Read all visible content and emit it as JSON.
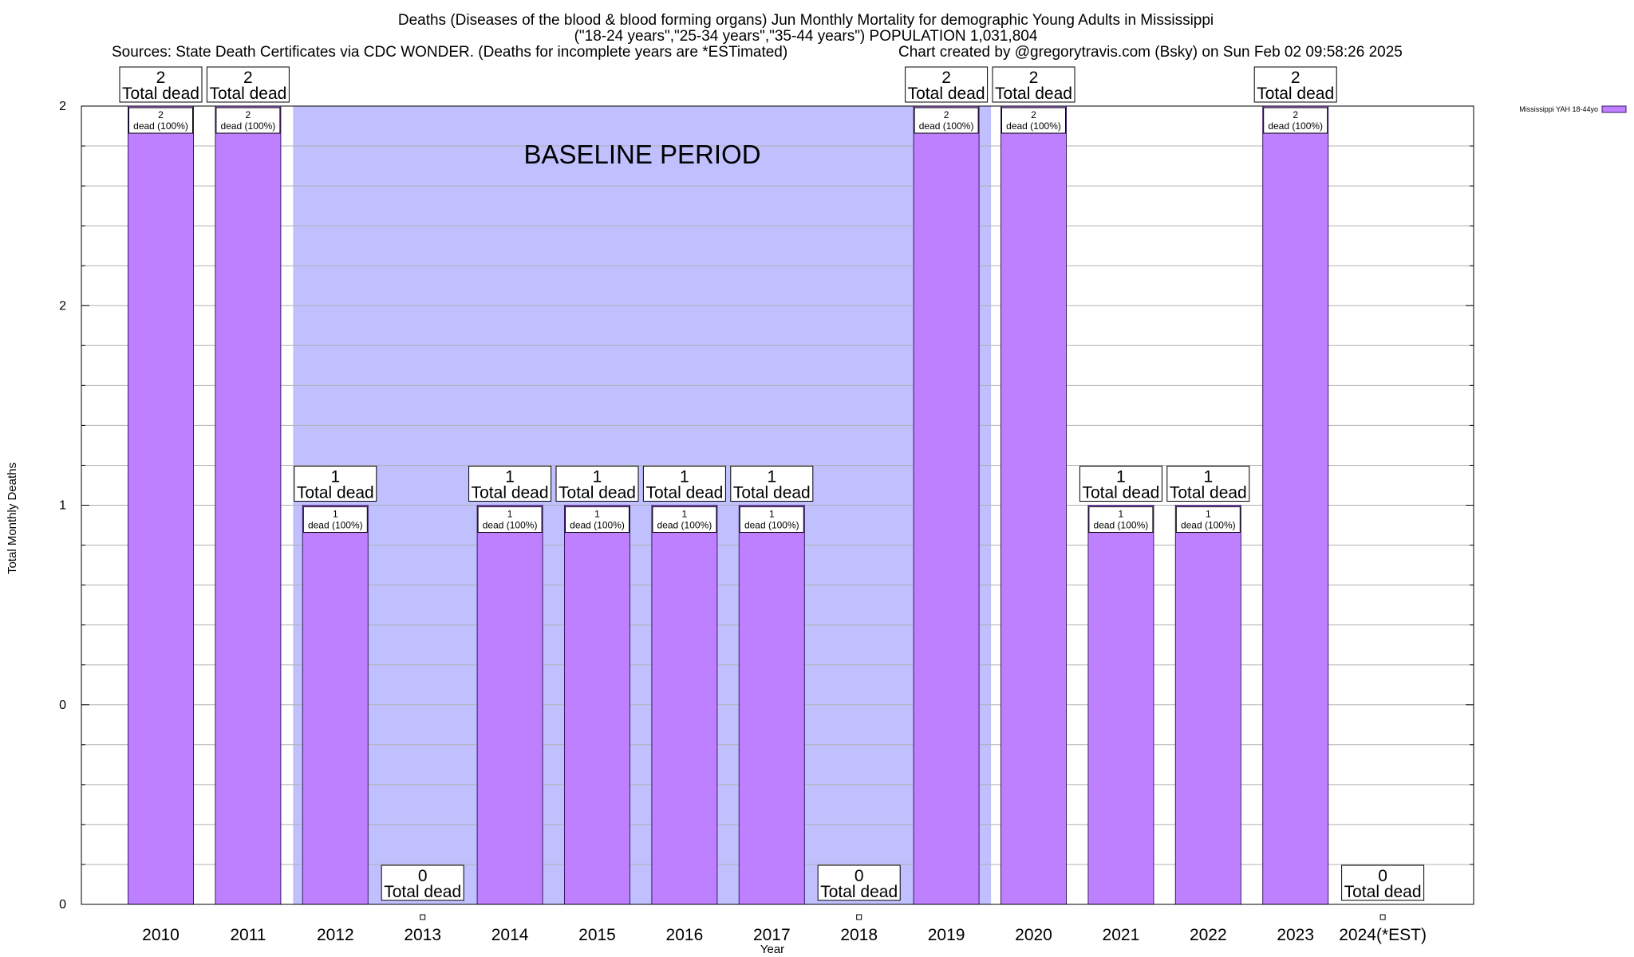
{
  "chart_data": {
    "type": "bar",
    "title_lines": [
      "Deaths (Diseases of the blood & blood forming organs) Jun Monthly Mortality for demographic Young Adults in Mississippi",
      "(\"18-24 years\",\"25-34 years\",\"35-44 years\") POPULATION 1,031,804"
    ],
    "sources": "Sources: State Death Certificates via CDC WONDER. (Deaths for incomplete years are *ESTimated)",
    "credit": "Chart created by @gregorytravis.com (Bsky) on Sun Feb 02 09:58:26 2025",
    "xlabel": "Year",
    "ylabel": "Total Monthly Deaths",
    "ylim": [
      0,
      2
    ],
    "y_tick_labels": [
      "0",
      "0",
      "1",
      "2",
      "2"
    ],
    "y_tick_values": [
      0,
      0.5,
      1,
      1.5,
      2
    ],
    "categories": [
      "2010",
      "2011",
      "2012",
      "2013",
      "2014",
      "2015",
      "2016",
      "2017",
      "2018",
      "2019",
      "2020",
      "2021",
      "2022",
      "2023",
      "2024(*EST)"
    ],
    "series": [
      {
        "name": "Mississippi YAH 18-44yo",
        "color": "#bf80ff",
        "values": [
          2,
          2,
          1,
          0,
          1,
          1,
          1,
          1,
          0,
          2,
          2,
          1,
          1,
          2,
          0
        ]
      }
    ],
    "bar_value_labels": [
      "2",
      "2",
      "1",
      "0",
      "1",
      "1",
      "1",
      "1",
      "0",
      "2",
      "2",
      "1",
      "1",
      "2",
      "0"
    ],
    "total_label": "Total dead",
    "inner_label": "dead (100%)",
    "baseline": {
      "label": "BASELINE PERIOD",
      "start": "2012",
      "end": "2019",
      "color": "#c0c0ff"
    },
    "legend": {
      "label": "Mississippi YAH 18-44yo",
      "position": "top-right"
    },
    "grid": true
  }
}
